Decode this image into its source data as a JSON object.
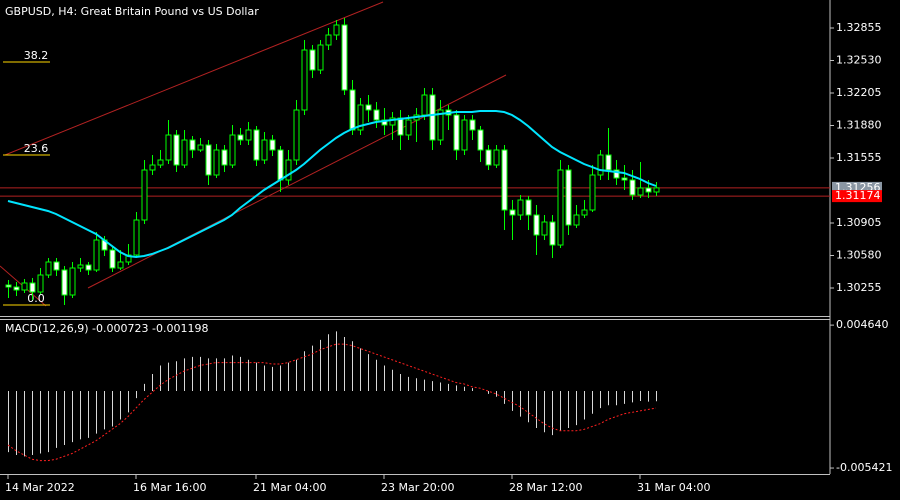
{
  "chart_data": [
    {
      "type": "candlestick",
      "title": "GBPUSD, H4:  Great Britain Pound vs US Dollar",
      "categories": [
        "14 Mar 2022",
        null,
        null,
        null,
        null,
        null,
        null,
        null,
        null,
        null,
        null,
        null,
        null,
        null,
        null,
        null,
        "16 Mar 16:00",
        null,
        null,
        null,
        null,
        null,
        null,
        null,
        null,
        null,
        null,
        null,
        null,
        null,
        null,
        "21 Mar 04:00",
        null,
        null,
        null,
        null,
        null,
        null,
        null,
        null,
        null,
        null,
        null,
        null,
        null,
        null,
        null,
        "23 Mar 20:00",
        null,
        null,
        null,
        null,
        null,
        null,
        null,
        null,
        null,
        null,
        null,
        null,
        null,
        null,
        null,
        "28 Mar 12:00",
        null,
        null,
        null,
        null,
        null,
        null,
        null,
        null,
        null,
        null,
        null,
        null,
        null,
        null,
        null,
        "31 Mar 04:00",
        null,
        null
      ],
      "candles": [
        [
          1.30285,
          1.30335,
          1.30155,
          1.30265
        ],
        [
          1.30265,
          1.30315,
          1.30175,
          1.30235
        ],
        [
          1.30235,
          1.30345,
          1.30205,
          1.30305
        ],
        [
          1.30305,
          1.30355,
          1.30135,
          1.30215
        ],
        [
          1.30215,
          1.30455,
          1.30195,
          1.30385
        ],
        [
          1.30385,
          1.30555,
          1.30355,
          1.30515
        ],
        [
          1.30515,
          1.30555,
          1.30375,
          1.30435
        ],
        [
          1.30435,
          1.30475,
          1.30085,
          1.30185
        ],
        [
          1.30185,
          1.30515,
          1.30155,
          1.30455
        ],
        [
          1.30455,
          1.30555,
          1.30415,
          1.30485
        ],
        [
          1.30485,
          1.30515,
          1.30385,
          1.30435
        ],
        [
          1.30435,
          1.30815,
          1.30415,
          1.30735
        ],
        [
          1.30735,
          1.30775,
          1.30575,
          1.30635
        ],
        [
          1.30635,
          1.30675,
          1.30415,
          1.30455
        ],
        [
          1.30455,
          1.30635,
          1.30435,
          1.30515
        ],
        [
          1.30515,
          1.30695,
          1.30485,
          1.30585
        ],
        [
          1.30585,
          1.31015,
          1.30555,
          1.30935
        ],
        [
          1.30935,
          1.31535,
          1.30895,
          1.31435
        ],
        [
          1.31435,
          1.31585,
          1.31385,
          1.31485
        ],
        [
          1.31485,
          1.31635,
          1.31455,
          1.31535
        ],
        [
          1.31535,
          1.31935,
          1.31495,
          1.31785
        ],
        [
          1.31785,
          1.31835,
          1.31415,
          1.31485
        ],
        [
          1.31485,
          1.31835,
          1.31455,
          1.31735
        ],
        [
          1.31735,
          1.31775,
          1.31555,
          1.31635
        ],
        [
          1.31635,
          1.31755,
          1.31615,
          1.31685
        ],
        [
          1.31685,
          1.31735,
          1.31285,
          1.31385
        ],
        [
          1.31385,
          1.31695,
          1.31355,
          1.31635
        ],
        [
          1.31635,
          1.31685,
          1.31415,
          1.31485
        ],
        [
          1.31485,
          1.31885,
          1.31455,
          1.31785
        ],
        [
          1.31785,
          1.31855,
          1.31685,
          1.31735
        ],
        [
          1.31735,
          1.31915,
          1.31685,
          1.31835
        ],
        [
          1.31835,
          1.31875,
          1.31475,
          1.31535
        ],
        [
          1.31535,
          1.31815,
          1.31495,
          1.31735
        ],
        [
          1.31735,
          1.31785,
          1.31575,
          1.31635
        ],
        [
          1.31635,
          1.31675,
          1.31215,
          1.31335
        ],
        [
          1.31335,
          1.31635,
          1.31285,
          1.31535
        ],
        [
          1.31535,
          1.32135,
          1.31485,
          1.32035
        ],
        [
          1.32035,
          1.32735,
          1.31985,
          1.32635
        ],
        [
          1.32635,
          1.32685,
          1.32355,
          1.32435
        ],
        [
          1.32435,
          1.32735,
          1.32395,
          1.32685
        ],
        [
          1.32685,
          1.32855,
          1.32635,
          1.32785
        ],
        [
          1.32785,
          1.32935,
          1.32735,
          1.32885
        ],
        [
          1.32885,
          1.32955,
          1.32185,
          1.32235
        ],
        [
          1.32235,
          1.32335,
          1.31785,
          1.31835
        ],
        [
          1.31835,
          1.32155,
          1.31785,
          1.32085
        ],
        [
          1.32085,
          1.32185,
          1.31915,
          1.32035
        ],
        [
          1.32035,
          1.32115,
          1.31855,
          1.31935
        ],
        [
          1.31935,
          1.32055,
          1.31785,
          1.31885
        ],
        [
          1.31885,
          1.32015,
          1.31735,
          1.31955
        ],
        [
          1.31955,
          1.32035,
          1.31635,
          1.31785
        ],
        [
          1.31785,
          1.31985,
          1.31735,
          1.31935
        ],
        [
          1.31935,
          1.32055,
          1.31715,
          1.31985
        ],
        [
          1.31985,
          1.32255,
          1.31935,
          1.32185
        ],
        [
          1.32185,
          1.32255,
          1.31635,
          1.31735
        ],
        [
          1.31735,
          1.32135,
          1.31685,
          1.32035
        ],
        [
          1.32035,
          1.32085,
          1.31835,
          1.31985
        ],
        [
          1.31985,
          1.32035,
          1.31535,
          1.31635
        ],
        [
          1.31635,
          1.31985,
          1.31585,
          1.31935
        ],
        [
          1.31935,
          1.31985,
          1.31735,
          1.31835
        ],
        [
          1.31835,
          1.31875,
          1.31515,
          1.31635
        ],
        [
          1.31635,
          1.31685,
          1.31435,
          1.31485
        ],
        [
          1.31485,
          1.31685,
          1.31455,
          1.31635
        ],
        [
          1.31635,
          1.31685,
          1.30835,
          1.31035
        ],
        [
          1.31035,
          1.31135,
          1.30735,
          1.30985
        ],
        [
          1.30985,
          1.31185,
          1.30935,
          1.31135
        ],
        [
          1.31135,
          1.31175,
          1.30835,
          1.30985
        ],
        [
          1.30985,
          1.31085,
          1.30585,
          1.30785
        ],
        [
          1.30785,
          1.30985,
          1.30735,
          1.30915
        ],
        [
          1.30915,
          1.30985,
          1.30555,
          1.30685
        ],
        [
          1.30685,
          1.31535,
          1.30655,
          1.31435
        ],
        [
          1.31435,
          1.31485,
          1.30785,
          1.30885
        ],
        [
          1.30885,
          1.31085,
          1.30855,
          1.30985
        ],
        [
          1.30985,
          1.31135,
          1.30955,
          1.31035
        ],
        [
          1.31035,
          1.31485,
          1.31015,
          1.31385
        ],
        [
          1.31385,
          1.31635,
          1.31335,
          1.31585
        ],
        [
          1.31585,
          1.31855,
          1.31335,
          1.31435
        ],
        [
          1.31435,
          1.31535,
          1.31285,
          1.31355
        ],
        [
          1.31355,
          1.31485,
          1.31235,
          1.31335
        ],
        [
          1.31335,
          1.31435,
          1.31135,
          1.31185
        ],
        [
          1.31185,
          1.31515,
          1.31155,
          1.31255
        ],
        [
          1.31255,
          1.31335,
          1.31155,
          1.31215
        ],
        [
          1.31215,
          1.31315,
          1.31175,
          1.31256
        ]
      ],
      "up_fill": "#000000",
      "down_fill": "#ffffff",
      "candle_color": "#00ff00",
      "ma": {
        "color": "#00e5ff",
        "values": [
          1.31125,
          1.31105,
          1.31085,
          1.31065,
          1.31045,
          1.31025,
          1.30995,
          1.30955,
          1.30915,
          1.30875,
          1.30835,
          1.30795,
          1.30735,
          1.30675,
          1.30615,
          1.30575,
          1.30565,
          1.30575,
          1.30595,
          1.30625,
          1.30655,
          1.30695,
          1.30735,
          1.30775,
          1.30815,
          1.30855,
          1.30895,
          1.30935,
          1.30985,
          1.31055,
          1.31115,
          1.31175,
          1.31235,
          1.31285,
          1.31335,
          1.31385,
          1.31435,
          1.31495,
          1.31565,
          1.31635,
          1.31695,
          1.31755,
          1.31805,
          1.31845,
          1.31875,
          1.31895,
          1.31915,
          1.31925,
          1.31935,
          1.31945,
          1.31955,
          1.31965,
          1.31975,
          1.31985,
          1.31995,
          1.32005,
          1.32015,
          1.32015,
          1.32015,
          1.32025,
          1.32025,
          1.32025,
          1.32015,
          1.31985,
          1.31935,
          1.31875,
          1.31805,
          1.31735,
          1.31665,
          1.31615,
          1.31575,
          1.31535,
          1.31495,
          1.31465,
          1.31435,
          1.31425,
          1.31415,
          1.31405,
          1.31375,
          1.31345,
          1.31305,
          1.31275
        ]
      },
      "ylim": [
        1.29975,
        1.33135
      ],
      "yticks": [
        {
          "value": 1.32855,
          "label": "1.32855"
        },
        {
          "value": 1.3253,
          "label": "1.32530"
        },
        {
          "value": 1.32205,
          "label": "1.32205"
        },
        {
          "value": 1.3188,
          "label": "1.31880"
        },
        {
          "value": 1.31555,
          "label": "1.31555"
        },
        {
          "value": 1.30905,
          "label": "1.30905"
        },
        {
          "value": 1.3058,
          "label": "1.30580"
        },
        {
          "value": 1.30255,
          "label": "1.30255"
        }
      ],
      "price_labels": [
        {
          "value": 1.31256,
          "label": "1.31256",
          "color": "#8a96a3",
          "line_color": "#b22222"
        },
        {
          "value": 1.31174,
          "label": "1.31174",
          "color": "#ff0000",
          "line_color": "#b22222"
        }
      ],
      "fib_levels": [
        {
          "label": "38.2",
          "price": 1.32515
        },
        {
          "label": "23.6",
          "price": 1.31585
        },
        {
          "label": "0.0",
          "price": 1.30085
        }
      ],
      "fib_color": "#ffd700"
    },
    {
      "type": "macd",
      "title": "MACD(12,26,9) -0.000723 -0.001198",
      "histogram": {
        "color": "#d8d8d8",
        "values": [
          -0.0043,
          -0.0045,
          -0.0046,
          -0.0045,
          -0.0044,
          -0.0043,
          -0.004,
          -0.0038,
          -0.0036,
          -0.0034,
          -0.0033,
          -0.003,
          -0.0027,
          -0.0025,
          -0.002,
          -0.0015,
          -0.0005,
          0.0005,
          0.0012,
          0.0018,
          0.002,
          0.0021,
          0.0023,
          0.0024,
          0.0024,
          0.0023,
          0.0023,
          0.0023,
          0.0025,
          0.0024,
          0.0022,
          0.002,
          0.0018,
          0.0017,
          0.0018,
          0.002,
          0.0022,
          0.0028,
          0.0032,
          0.0036,
          0.004,
          0.0042,
          0.0038,
          0.0035,
          0.003,
          0.0026,
          0.0022,
          0.0018,
          0.0015,
          0.0012,
          0.001,
          0.0009,
          0.0008,
          0.0007,
          0.0006,
          0.0005,
          0.0004,
          0.0003,
          0.0002,
          0,
          -0.0002,
          -0.0004,
          -0.0009,
          -0.0014,
          -0.0018,
          -0.0022,
          -0.0026,
          -0.0029,
          -0.0031,
          -0.0028,
          -0.0026,
          -0.0024,
          -0.002,
          -0.0016,
          -0.0012,
          -0.001,
          -0.001,
          -0.0009,
          -0.0008,
          -0.0007,
          -0.00075,
          -0.000723
        ]
      },
      "signal": {
        "color": "#ff2020",
        "values": [
          -0.0038,
          -0.0042,
          -0.0045,
          -0.0048,
          -0.0049,
          -0.0049,
          -0.0048,
          -0.0046,
          -0.0044,
          -0.0041,
          -0.0038,
          -0.0035,
          -0.0031,
          -0.0027,
          -0.0023,
          -0.0018,
          -0.0012,
          -0.0006,
          -0.0001,
          0.0004,
          0.0008,
          0.0011,
          0.0014,
          0.0016,
          0.0018,
          0.0019,
          0.002,
          0.002,
          0.002,
          0.002,
          0.002,
          0.002,
          0.002,
          0.0019,
          0.0019,
          0.002,
          0.0022,
          0.0024,
          0.0026,
          0.0029,
          0.0031,
          0.0033,
          0.0033,
          0.0032,
          0.003,
          0.0028,
          0.0026,
          0.0024,
          0.0022,
          0.002,
          0.0018,
          0.0016,
          0.0014,
          0.0012,
          0.001,
          0.0008,
          0.0006,
          0.0005,
          0.0003,
          0.0002,
          0,
          -0.0002,
          -0.0005,
          -0.0008,
          -0.0011,
          -0.0015,
          -0.0019,
          -0.0023,
          -0.0026,
          -0.0028,
          -0.0028,
          -0.0028,
          -0.0027,
          -0.0025,
          -0.0023,
          -0.002,
          -0.0018,
          -0.0016,
          -0.0015,
          -0.0014,
          -0.0013,
          -0.001198
        ]
      },
      "ylim": [
        -0.0057,
        0.005
      ],
      "yticks": [
        {
          "value": 0.00464,
          "label": "0.004640"
        },
        {
          "value": -0.005421,
          "label": "-0.005421"
        }
      ]
    }
  ]
}
